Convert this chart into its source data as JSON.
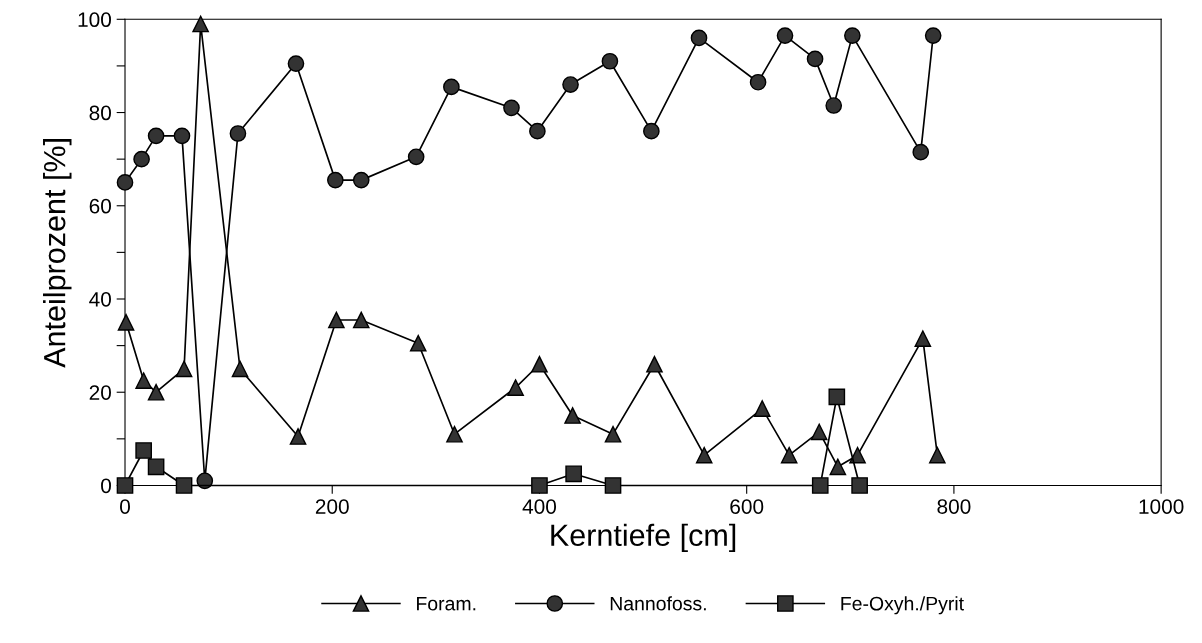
{
  "chart_data": {
    "type": "line",
    "xlabel": "Kerntiefe [cm]",
    "ylabel": "Anteilprozent [%]",
    "xlim": [
      0,
      1000
    ],
    "xticks": [
      0,
      200,
      400,
      600,
      800,
      1000
    ],
    "ylim": [
      0,
      100
    ],
    "yticks": [
      0,
      {
        "value": 10,
        "label": null
      },
      20,
      {
        "value": 30,
        "label": null
      },
      40,
      {
        "value": 50,
        "label": null
      },
      60,
      {
        "value": 70,
        "label": null
      },
      80,
      {
        "value": 90,
        "label": null
      },
      100
    ],
    "grid": false,
    "legend": "bottom",
    "line_style": "solid",
    "series": [
      {
        "name": "Foram.",
        "color": "#333333",
        "marker": "triangle",
        "x": [
          1,
          18,
          30,
          57,
          73,
          111,
          167,
          204,
          228,
          283,
          318,
          377,
          400,
          432,
          471,
          511,
          559,
          615,
          641,
          670,
          688,
          707,
          770,
          784
        ],
        "values": [
          35,
          22.5,
          20,
          25,
          99,
          25,
          10.5,
          35.5,
          35.5,
          30.5,
          11,
          21,
          26,
          15,
          11,
          26,
          6.5,
          16.5,
          6.5,
          11.5,
          4,
          6.5,
          31.5,
          6.5
        ]
      },
      {
        "name": "Nannofoss.",
        "color": "#333333",
        "marker": "circle",
        "x": [
          0,
          16,
          30,
          55,
          77,
          109,
          165,
          203,
          228,
          281,
          315,
          373,
          398,
          430,
          468,
          508,
          554,
          611,
          637,
          666,
          684,
          702,
          768,
          780
        ],
        "values": [
          65,
          70,
          75,
          75,
          1,
          75.5,
          90.5,
          65.5,
          65.5,
          70.5,
          85.5,
          81,
          76,
          86,
          91,
          76,
          96,
          86.5,
          96.5,
          91.5,
          81.5,
          96.5,
          71.5,
          96.5
        ]
      },
      {
        "name": "Fe-Oxyh./Pyrit",
        "color": "#333333",
        "marker": "square",
        "x": [
          0,
          18,
          30,
          57,
          400,
          433,
          471,
          671,
          687,
          709
        ],
        "values": [
          0,
          7.5,
          4,
          0,
          0,
          2.5,
          0,
          0,
          19,
          0
        ]
      }
    ]
  }
}
